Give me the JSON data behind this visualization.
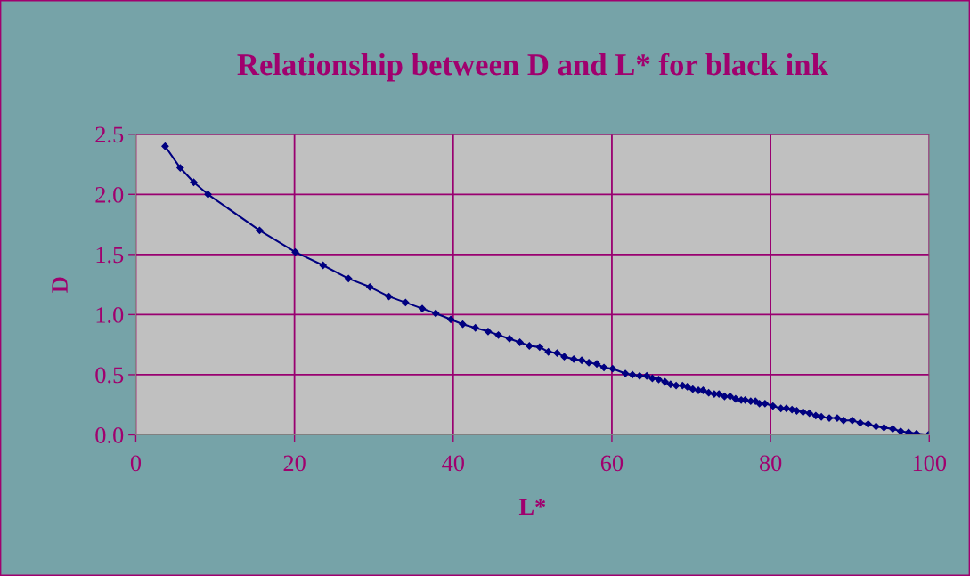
{
  "chart_data": {
    "type": "line",
    "title": "Relationship between D and L* for black ink",
    "xlabel": "L*",
    "ylabel": "D",
    "xlim": [
      0,
      100
    ],
    "xticks": [
      0,
      20,
      40,
      60,
      80,
      100
    ],
    "ylim": [
      0,
      2.5
    ],
    "yticks": [
      {
        "value": 0,
        "label": "0.0"
      },
      {
        "value": 0.5,
        "label": "0.5"
      },
      {
        "value": 1,
        "label": "1.0"
      },
      {
        "value": 1.5,
        "label": "1.5"
      },
      {
        "value": 2,
        "label": "2.0"
      },
      {
        "value": 2.5,
        "label": "2.5"
      }
    ],
    "grid": true,
    "marker": "diamond",
    "line_style": "solid",
    "legend": false,
    "series": [
      {
        "color": "#000080",
        "x": [
          3.7,
          5.6,
          7.3,
          9.1,
          15.6,
          20.1,
          23.6,
          26.8,
          29.5,
          31.9,
          34.0,
          36.1,
          37.8,
          39.7,
          41.2,
          42.8,
          44.4,
          45.7,
          47.1,
          48.4,
          49.6,
          50.9,
          52.0,
          53.1,
          54.0,
          55.2,
          56.2,
          57.1,
          58.1,
          59.0,
          60.1,
          61.7,
          62.6,
          63.5,
          64.4,
          65.1,
          65.9,
          66.7,
          67.4,
          68.1,
          68.9,
          69.5,
          70.2,
          70.9,
          71.5,
          72.2,
          72.9,
          73.5,
          74.2,
          74.9,
          75.6,
          76.3,
          76.8,
          77.5,
          78.1,
          78.6,
          79.3,
          80.3,
          81.3,
          82.0,
          82.7,
          83.3,
          84.1,
          84.9,
          85.7,
          86.4,
          87.4,
          88.4,
          89.2,
          90.3,
          91.3,
          92.3,
          93.3,
          94.3,
          95.4,
          96.4,
          97.4,
          98.4,
          99.9
        ],
        "values": [
          2.4,
          2.22,
          2.1,
          2.0,
          1.7,
          1.52,
          1.41,
          1.3,
          1.23,
          1.15,
          1.1,
          1.05,
          1.01,
          0.96,
          0.92,
          0.89,
          0.86,
          0.83,
          0.8,
          0.77,
          0.74,
          0.73,
          0.69,
          0.68,
          0.65,
          0.63,
          0.62,
          0.6,
          0.59,
          0.56,
          0.55,
          0.51,
          0.5,
          0.49,
          0.49,
          0.47,
          0.46,
          0.44,
          0.42,
          0.41,
          0.41,
          0.4,
          0.38,
          0.37,
          0.37,
          0.35,
          0.34,
          0.34,
          0.32,
          0.32,
          0.3,
          0.29,
          0.29,
          0.28,
          0.28,
          0.26,
          0.26,
          0.24,
          0.22,
          0.22,
          0.21,
          0.2,
          0.19,
          0.18,
          0.16,
          0.15,
          0.14,
          0.14,
          0.12,
          0.12,
          0.1,
          0.09,
          0.07,
          0.06,
          0.05,
          0.03,
          0.02,
          0.01,
          0.0
        ]
      }
    ]
  }
}
